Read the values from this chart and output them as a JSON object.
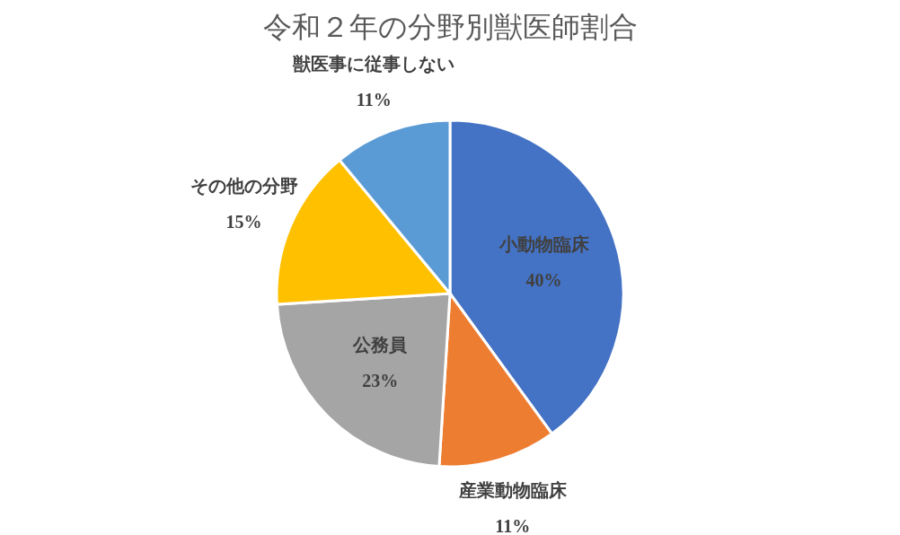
{
  "chart_data": {
    "type": "pie",
    "title": "令和２年の分野別獣医師割合",
    "categories": [
      "小動物臨床",
      "産業動物臨床",
      "公務員",
      "その他の分野",
      "獣医事に従事しない"
    ],
    "values": [
      40,
      11,
      23,
      15,
      11
    ],
    "colors": [
      "#4472c4",
      "#ed7d31",
      "#a5a5a5",
      "#ffc000",
      "#5b9bd5"
    ],
    "value_labels": [
      "40%",
      "11%",
      "23%",
      "15%",
      "11%"
    ],
    "legend": false
  }
}
